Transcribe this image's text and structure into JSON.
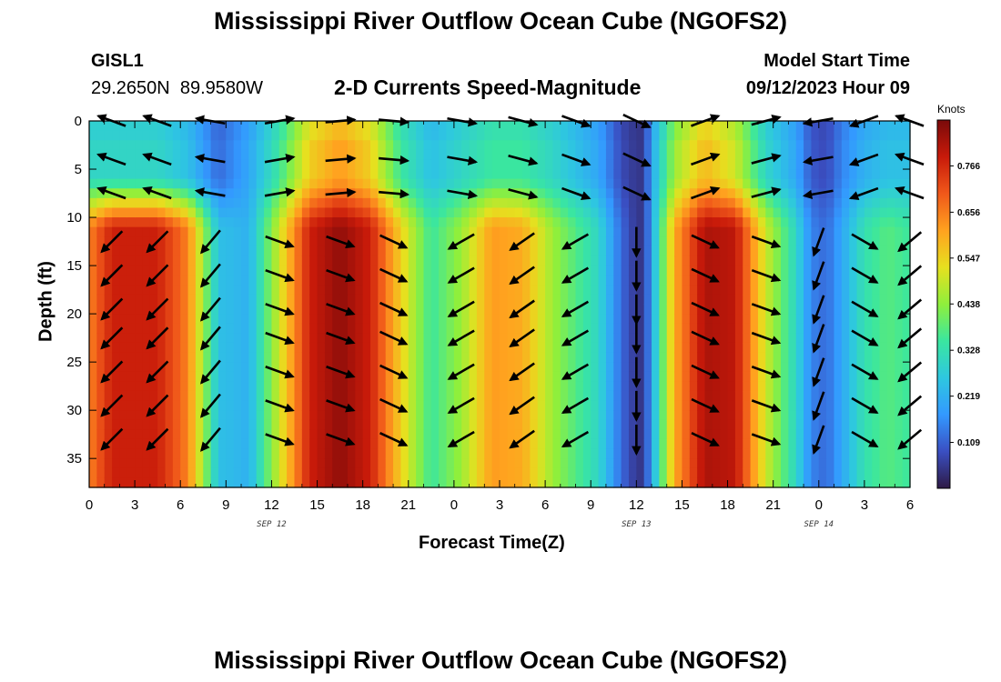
{
  "header": {
    "title": "Mississippi River Outflow Ocean Cube (NGOFS2)",
    "station_id": "GISL1",
    "station_coords": "29.2650N  89.9580W",
    "subtitle": "2-D Currents Speed-Magnitude",
    "model_start_label": "Model Start Time",
    "model_start_value": "09/12/2023 Hour 09"
  },
  "footer": {
    "title": "Mississippi River Outflow Ocean Cube (NGOFS2)"
  },
  "chart_data": {
    "type": "heatmap",
    "xlabel": "Forecast Time(Z)",
    "ylabel": "Depth (ft)",
    "x_ticks": [
      "0",
      "3",
      "6",
      "9",
      "12",
      "15",
      "18",
      "21",
      "0",
      "3",
      "6",
      "9",
      "12",
      "15",
      "18",
      "21",
      "0",
      "3",
      "6"
    ],
    "x_range_hours": [
      0,
      54
    ],
    "y_ticks": [
      0,
      5,
      10,
      15,
      20,
      25,
      30,
      35
    ],
    "ylim": [
      0,
      38
    ],
    "y_inverted": true,
    "date_labels": [
      {
        "text": "SEP 12",
        "hour": 12
      },
      {
        "text": "SEP 13",
        "hour": 36
      },
      {
        "text": "SEP 14",
        "hour": 48
      }
    ],
    "colorbar": {
      "label": "Knots",
      "ticks": [
        "0.766",
        "0.656",
        "0.547",
        "0.438",
        "0.328",
        "0.219",
        "0.109"
      ],
      "range": [
        0.0,
        0.875
      ],
      "colors": [
        "#2e1a45",
        "#3a4fc2",
        "#3399ff",
        "#2ec7e0",
        "#3ae6a0",
        "#8fef3c",
        "#e6e01f",
        "#ffa21f",
        "#f0581a",
        "#c81a0a",
        "#7a0a0a"
      ]
    },
    "speed_profile_by_hour": {
      "hours": [
        0,
        1.5,
        4.5,
        6.5,
        8.5,
        10.5,
        12.5,
        14.5,
        16.5,
        18.5,
        20.5,
        22.5,
        24.5,
        26.5,
        28.5,
        30.5,
        33.5,
        35,
        36,
        36.5,
        37,
        38.5,
        40.5,
        42.5,
        44.5,
        46.5,
        47.5,
        48.5,
        49.5,
        51,
        52.5,
        54
      ],
      "surface": [
        0.3,
        0.3,
        0.3,
        0.25,
        0.12,
        0.2,
        0.35,
        0.55,
        0.62,
        0.55,
        0.35,
        0.25,
        0.3,
        0.35,
        0.35,
        0.3,
        0.2,
        0.08,
        0.05,
        0.05,
        0.2,
        0.45,
        0.58,
        0.5,
        0.3,
        0.2,
        0.1,
        0.08,
        0.15,
        0.22,
        0.25,
        0.25
      ],
      "deep": [
        0.65,
        0.78,
        0.78,
        0.65,
        0.25,
        0.22,
        0.5,
        0.78,
        0.85,
        0.78,
        0.55,
        0.35,
        0.45,
        0.62,
        0.6,
        0.45,
        0.3,
        0.12,
        0.05,
        0.05,
        0.2,
        0.6,
        0.82,
        0.8,
        0.5,
        0.3,
        0.15,
        0.12,
        0.2,
        0.33,
        0.38,
        0.35
      ]
    },
    "vectors": {
      "hours": [
        1.5,
        4.5,
        8,
        12.5,
        16.5,
        20,
        24.5,
        28.5,
        32,
        36,
        40.5,
        44.5,
        48,
        51,
        54
      ],
      "depths": [
        0,
        4,
        7.5,
        12.5,
        16,
        19.5,
        22.5,
        26,
        29.5,
        33
      ],
      "shallow_angle_deg": [
        200,
        200,
        190,
        350,
        355,
        5,
        10,
        15,
        20,
        25,
        340,
        345,
        170,
        160,
        200
      ],
      "deep_angle_deg": [
        135,
        135,
        130,
        20,
        20,
        25,
        150,
        145,
        150,
        90,
        25,
        20,
        110,
        30,
        140
      ]
    }
  }
}
